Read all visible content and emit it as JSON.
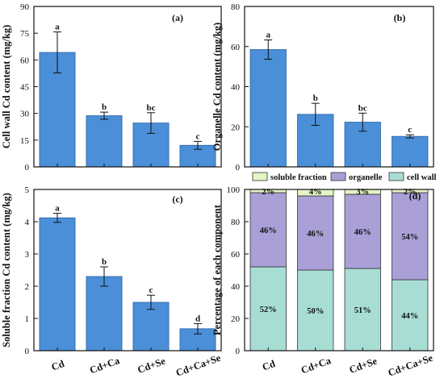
{
  "chart_data": [
    {
      "panel": "(a)",
      "type": "bar",
      "categories": [
        "Cd",
        "Cd+Ca",
        "Cd+Se",
        "Cd+Ca+Se"
      ],
      "values": [
        64.2,
        28.7,
        24.6,
        12.1
      ],
      "errors": [
        11.5,
        2.0,
        5.8,
        2.2
      ],
      "letters": [
        "a",
        "b",
        "bc",
        "c"
      ],
      "ylabel": "Cell wall Cd content (mg/kg)",
      "ylim": [
        0,
        90
      ],
      "yticks": [
        0,
        15,
        30,
        45,
        60,
        75,
        90
      ],
      "bar_color": "#4a8fd8"
    },
    {
      "panel": "(b)",
      "type": "bar",
      "categories": [
        "Cd",
        "Cd+Ca",
        "Cd+Se",
        "Cd+Ca+Se"
      ],
      "values": [
        58.5,
        26.2,
        22.3,
        15.2
      ],
      "errors": [
        4.8,
        5.5,
        4.5,
        0.8
      ],
      "letters": [
        "a",
        "b",
        "bc",
        "c"
      ],
      "ylabel": "Organelle Cd content (mg/kg)",
      "ylim": [
        0,
        80
      ],
      "yticks": [
        0,
        20,
        40,
        60,
        80
      ],
      "bar_color": "#4a8fd8"
    },
    {
      "panel": "(c)",
      "type": "bar",
      "categories": [
        "Cd",
        "Cd+Ca",
        "Cd+Se",
        "Cd+Ca+Se"
      ],
      "values": [
        4.12,
        2.3,
        1.5,
        0.68
      ],
      "errors": [
        0.14,
        0.3,
        0.22,
        0.16
      ],
      "letters": [
        "a",
        "b",
        "c",
        "d"
      ],
      "ylabel": "Soluble fraction Cd content (mg/kg)",
      "ylim": [
        0,
        5
      ],
      "yticks": [
        0,
        1,
        2,
        3,
        4,
        5
      ],
      "bar_color": "#4a8fd8"
    },
    {
      "panel": "(d)",
      "type": "bar",
      "stacked": true,
      "categories": [
        "Cd",
        "Cd+Ca",
        "Cd+Se",
        "Cd+Ca+Se"
      ],
      "ylabel": "Percentage of each component",
      "ylim": [
        0,
        100
      ],
      "yticks": [
        0,
        20,
        40,
        60,
        80,
        100
      ],
      "legend_position": "top",
      "series": [
        {
          "name": "cell wall",
          "values": [
            52,
            50,
            51,
            44
          ],
          "labels": [
            "52%",
            "50%",
            "51%",
            "44%"
          ],
          "color": "#a8ddd4"
        },
        {
          "name": "organelle",
          "values": [
            46,
            46,
            46,
            54
          ],
          "labels": [
            "46%",
            "46%",
            "46%",
            "54%"
          ],
          "color": "#aa9fd6"
        },
        {
          "name": "soluble fraction",
          "values": [
            2,
            4,
            3,
            2
          ],
          "labels": [
            "2%",
            "4%",
            "3%",
            "2%"
          ],
          "color": "#e4f4c4"
        }
      ]
    }
  ]
}
